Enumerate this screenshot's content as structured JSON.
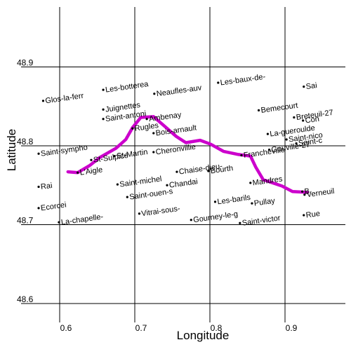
{
  "axes": {
    "xlabel": "Longitude",
    "ylabel": "Latitude",
    "x_ticks": [
      {
        "value": 0.6,
        "label": "0.6"
      },
      {
        "value": 0.7,
        "label": "0.7"
      },
      {
        "value": 0.8,
        "label": "0.8"
      },
      {
        "value": 0.9,
        "label": "0.9"
      }
    ],
    "y_ticks": [
      {
        "value": 48.6,
        "label": "48.6"
      },
      {
        "value": 48.7,
        "label": "48.7"
      },
      {
        "value": 48.8,
        "label": "48.8"
      },
      {
        "value": 48.9,
        "label": "48.9"
      }
    ],
    "xlim": [
      0.545,
      0.93
    ],
    "ylim": [
      48.58,
      48.94
    ],
    "grid": true,
    "grid_color": "#000000",
    "background": "#ffffff"
  },
  "chart_data": {
    "type": "scatter",
    "xlabel": "Longitude",
    "ylabel": "Latitude",
    "xlim": [
      0.545,
      0.93
    ],
    "ylim": [
      48.58,
      48.94
    ],
    "grid": true,
    "points": [
      {
        "name": "Glos-la-ferr",
        "lon": 0.578,
        "lat": 48.857
      },
      {
        "name": "Les-botterea",
        "lon": 0.658,
        "lat": 48.871
      },
      {
        "name": "Neaufles-auv",
        "lon": 0.726,
        "lat": 48.866
      },
      {
        "name": "Les-baux-de-",
        "lon": 0.811,
        "lat": 48.88
      },
      {
        "name": "Sai",
        "lon": 0.925,
        "lat": 48.875
      },
      {
        "name": "Juignettes",
        "lon": 0.658,
        "lat": 48.846
      },
      {
        "name": "Saint-antoni",
        "lon": 0.658,
        "lat": 48.834
      },
      {
        "name": "Ambenay",
        "lon": 0.716,
        "lat": 48.834
      },
      {
        "name": "Bemecourt",
        "lon": 0.865,
        "lat": 48.845
      },
      {
        "name": "Breteuil-27",
        "lon": 0.912,
        "lat": 48.836
      },
      {
        "name": "Con",
        "lon": 0.924,
        "lat": 48.832
      },
      {
        "name": "Rugles",
        "lon": 0.697,
        "lat": 48.822
      },
      {
        "name": "Bois-arnault",
        "lon": 0.725,
        "lat": 48.816
      },
      {
        "name": "La-gueroulde",
        "lon": 0.877,
        "lat": 48.815
      },
      {
        "name": "Saint-nico",
        "lon": 0.902,
        "lat": 48.808
      },
      {
        "name": "Saint-c",
        "lon": 0.915,
        "lat": 48.803
      },
      {
        "name": "Saint-sympho",
        "lon": 0.572,
        "lat": 48.79
      },
      {
        "name": "St-Martin",
        "lon": 0.673,
        "lat": 48.787
      },
      {
        "name": "Cheronvillie",
        "lon": 0.725,
        "lat": 48.792
      },
      {
        "name": "Chaise-dieu-",
        "lon": 0.756,
        "lat": 48.767
      },
      {
        "name": "Bourth",
        "lon": 0.798,
        "lat": 48.768
      },
      {
        "name": "Francheville",
        "lon": 0.842,
        "lat": 48.788
      },
      {
        "name": "Gouvillé-27",
        "lon": 0.879,
        "lat": 48.795
      },
      {
        "name": "St-Sulpice",
        "lon": 0.642,
        "lat": 48.782
      },
      {
        "name": "L'Aigle",
        "lon": 0.624,
        "lat": 48.766
      },
      {
        "name": "Saint-michel",
        "lon": 0.677,
        "lat": 48.751
      },
      {
        "name": "Chandai",
        "lon": 0.743,
        "lat": 48.75
      },
      {
        "name": "Mandres",
        "lon": 0.854,
        "lat": 48.753
      },
      {
        "name": "Verneuil",
        "lon": 0.926,
        "lat": 48.738
      },
      {
        "name": "Rai",
        "lon": 0.572,
        "lat": 48.748
      },
      {
        "name": "Saint-ouen-s",
        "lon": 0.69,
        "lat": 48.735
      },
      {
        "name": "Les-barils",
        "lon": 0.807,
        "lat": 48.729
      },
      {
        "name": "Pullay",
        "lon": 0.856,
        "lat": 48.727
      },
      {
        "name": "B",
        "lon": 0.923,
        "lat": 48.742
      },
      {
        "name": "Ecorcei",
        "lon": 0.572,
        "lat": 48.721
      },
      {
        "name": "Vitrai-sous-",
        "lon": 0.706,
        "lat": 48.714
      },
      {
        "name": "Rue",
        "lon": 0.925,
        "lat": 48.712
      },
      {
        "name": "La-chapelle-",
        "lon": 0.599,
        "lat": 48.703
      },
      {
        "name": "Gourney-le-g",
        "lon": 0.775,
        "lat": 48.706
      },
      {
        "name": "Saint-victor",
        "lon": 0.84,
        "lat": 48.702
      }
    ],
    "route": {
      "color": "#cc00cc",
      "coordinates": [
        [
          0.611,
          48.767
        ],
        [
          0.624,
          48.766
        ],
        [
          0.64,
          48.775
        ],
        [
          0.653,
          48.785
        ],
        [
          0.675,
          48.797
        ],
        [
          0.688,
          48.808
        ],
        [
          0.697,
          48.823
        ],
        [
          0.708,
          48.836
        ],
        [
          0.725,
          48.837
        ],
        [
          0.737,
          48.827
        ],
        [
          0.755,
          48.812
        ],
        [
          0.768,
          48.804
        ],
        [
          0.787,
          48.807
        ],
        [
          0.801,
          48.802
        ],
        [
          0.818,
          48.793
        ],
        [
          0.838,
          48.789
        ],
        [
          0.854,
          48.787
        ],
        [
          0.861,
          48.773
        ],
        [
          0.871,
          48.757
        ],
        [
          0.896,
          48.749
        ],
        [
          0.91,
          48.742
        ],
        [
          0.93,
          48.741
        ]
      ]
    }
  }
}
